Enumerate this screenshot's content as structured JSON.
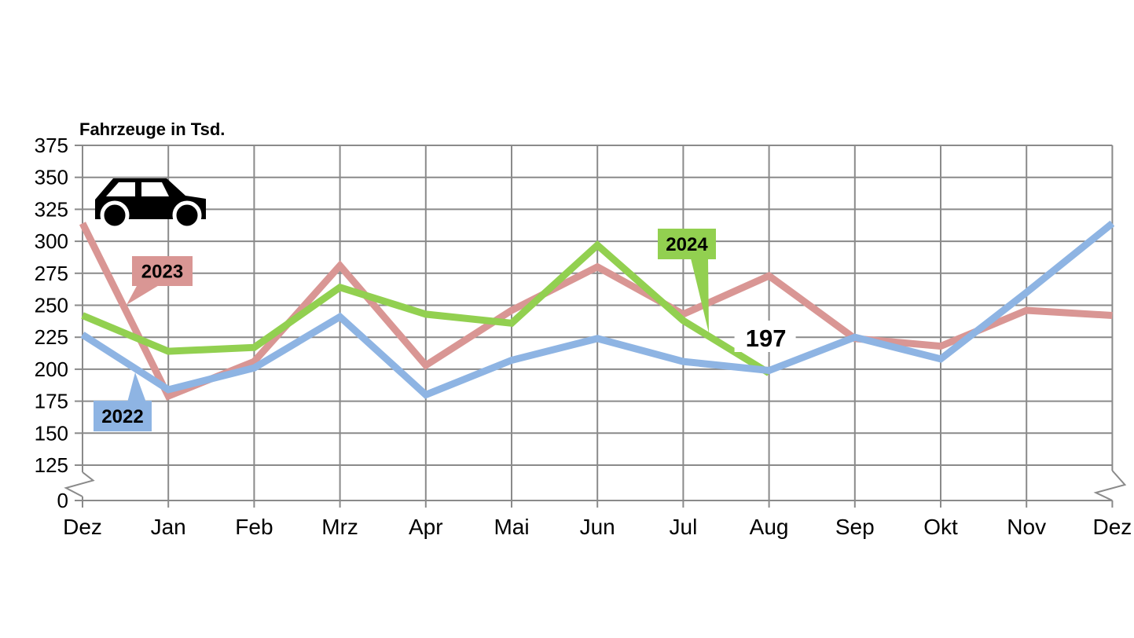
{
  "chart_data": {
    "type": "line",
    "title": "Fahrzeuge in Tsd.",
    "categories": [
      "Dez",
      "Jan",
      "Feb",
      "Mrz",
      "Apr",
      "Mai",
      "Jun",
      "Jul",
      "Aug",
      "Sep",
      "Okt",
      "Nov",
      "Dez"
    ],
    "y_ticks": [
      0,
      125,
      150,
      175,
      200,
      225,
      250,
      275,
      300,
      325,
      350,
      375
    ],
    "y_axis_break": {
      "between": [
        0,
        125
      ]
    },
    "ylim_displayed": [
      125,
      375
    ],
    "grid": true,
    "legend_position": "inline-callouts",
    "icon": "car-icon",
    "background": "#ffffff",
    "grid_color": "#8a8a8a",
    "text_color": "#000000",
    "draw_order": [
      "2023",
      "2024",
      "2022"
    ],
    "series": [
      {
        "name": "2022",
        "color": "#8eb4e3",
        "values": [
          227,
          184,
          201,
          241,
          180,
          207,
          224,
          206,
          199,
          225,
          208,
          260,
          314
        ]
      },
      {
        "name": "2023",
        "color": "#d99694",
        "values": [
          314,
          179,
          206,
          281,
          203,
          246,
          280,
          243,
          273,
          224,
          218,
          246,
          242
        ]
      },
      {
        "name": "2024",
        "color": "#92d050",
        "values": [
          242,
          214,
          217,
          264,
          243,
          236,
          297,
          238,
          197
        ]
      }
    ],
    "annotations": [
      {
        "text": "197",
        "series": "2024",
        "month": "Aug",
        "value": 197
      }
    ],
    "callouts": [
      {
        "label": "2022",
        "color": "#8eb4e3"
      },
      {
        "label": "2023",
        "color": "#d99694"
      },
      {
        "label": "2024",
        "color": "#92d050"
      }
    ]
  }
}
